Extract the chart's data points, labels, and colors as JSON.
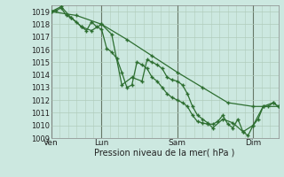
{
  "xlabel": "Pression niveau de la mer( hPa )",
  "ylim": [
    1009,
    1019.5
  ],
  "yticks": [
    1009,
    1010,
    1011,
    1012,
    1013,
    1014,
    1015,
    1016,
    1017,
    1018,
    1019
  ],
  "day_labels": [
    "Ven",
    "Lun",
    "Sam",
    "Dim"
  ],
  "day_positions": [
    0,
    60,
    150,
    240
  ],
  "bg_color": "#cce8e0",
  "grid_color_h": "#b0ccbb",
  "grid_color_v": "#cc9999",
  "line_color": "#2d6e30",
  "total_hours": 270,
  "series1_x": [
    0,
    6,
    12,
    18,
    24,
    30,
    36,
    42,
    48,
    54,
    60,
    66,
    72,
    78,
    84,
    90,
    96,
    102,
    108,
    114,
    120,
    126,
    132,
    138,
    144,
    150,
    156,
    162,
    168,
    174,
    180,
    186,
    192,
    198,
    204,
    210,
    216,
    222,
    228,
    234,
    240,
    246,
    252,
    258,
    264,
    270
  ],
  "series1_y": [
    1019.0,
    1019.1,
    1019.3,
    1018.7,
    1018.5,
    1018.2,
    1017.8,
    1017.5,
    1018.2,
    1017.8,
    1017.6,
    1016.1,
    1015.8,
    1015.3,
    1014.2,
    1013.0,
    1013.2,
    1015.0,
    1014.8,
    1014.5,
    1013.8,
    1013.5,
    1013.0,
    1012.5,
    1012.2,
    1012.0,
    1011.8,
    1011.5,
    1010.8,
    1010.3,
    1010.2,
    1010.1,
    1010.1,
    1010.3,
    1010.8,
    1010.1,
    1009.8,
    1010.5,
    1009.5,
    1009.2,
    1010.0,
    1010.5,
    1011.5,
    1011.5,
    1011.8,
    1011.5
  ],
  "series2_x": [
    0,
    12,
    24,
    36,
    48,
    60,
    72,
    84,
    96,
    108,
    114,
    120,
    126,
    132,
    138,
    144,
    150,
    156,
    162,
    168,
    174,
    180,
    186,
    192,
    204,
    216,
    228,
    240,
    252,
    264,
    270
  ],
  "series2_y": [
    1019.0,
    1019.4,
    1018.5,
    1017.8,
    1017.5,
    1018.0,
    1017.2,
    1013.2,
    1013.8,
    1013.5,
    1015.2,
    1015.0,
    1014.8,
    1014.5,
    1013.8,
    1013.6,
    1013.5,
    1013.2,
    1012.5,
    1011.5,
    1010.8,
    1010.5,
    1010.2,
    1009.8,
    1010.5,
    1010.2,
    1009.5,
    1010.0,
    1011.5,
    1011.8,
    1011.5
  ],
  "series3_x": [
    0,
    30,
    60,
    90,
    120,
    150,
    180,
    210,
    240,
    270
  ],
  "series3_y": [
    1019.0,
    1018.7,
    1018.0,
    1016.8,
    1015.5,
    1014.2,
    1013.0,
    1011.8,
    1011.5,
    1011.5
  ]
}
